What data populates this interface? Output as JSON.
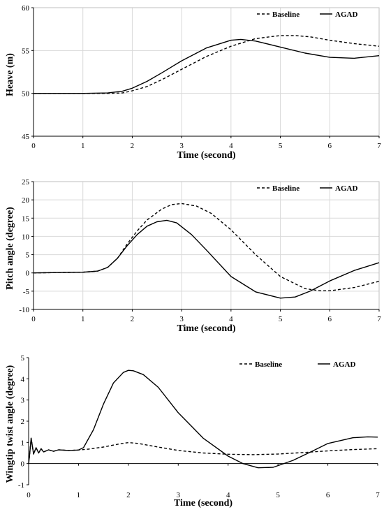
{
  "chart_data": [
    {
      "type": "line",
      "xlabel": "Time (second)",
      "ylabel": "Heave (m)",
      "xlim": [
        0,
        7
      ],
      "ylim": [
        45,
        60
      ],
      "xticks": [
        "0",
        "1",
        "2",
        "3",
        "4",
        "5",
        "6",
        "7"
      ],
      "yticks": [
        "45",
        "50",
        "55",
        "60"
      ],
      "ytick_values": [
        45,
        50,
        55,
        60
      ],
      "grid": true,
      "legend_position": "top-right",
      "series": [
        {
          "name": "Baseline",
          "style": "dashed",
          "x": [
            0,
            1,
            1.5,
            1.8,
            2,
            2.3,
            2.6,
            3,
            3.5,
            4,
            4.5,
            5,
            5.3,
            5.6,
            6,
            6.5,
            7
          ],
          "y": [
            50,
            50,
            50,
            50.05,
            50.3,
            50.8,
            51.6,
            52.8,
            54.3,
            55.5,
            56.4,
            56.75,
            56.75,
            56.6,
            56.2,
            55.8,
            55.5
          ]
        },
        {
          "name": "AGAD",
          "style": "solid",
          "x": [
            0,
            1,
            1.5,
            1.8,
            2,
            2.3,
            2.6,
            3,
            3.5,
            4,
            4.2,
            4.5,
            5,
            5.5,
            6,
            6.5,
            7
          ],
          "y": [
            50,
            50,
            50.05,
            50.25,
            50.6,
            51.4,
            52.4,
            53.8,
            55.3,
            56.2,
            56.3,
            56.1,
            55.4,
            54.7,
            54.2,
            54.1,
            54.4
          ]
        }
      ]
    },
    {
      "type": "line",
      "xlabel": "Time (second)",
      "ylabel": "Pitch angle (degree)",
      "xlim": [
        0,
        7
      ],
      "ylim": [
        -10,
        25
      ],
      "xticks": [
        "0",
        "1",
        "2",
        "3",
        "4",
        "5",
        "6",
        "7"
      ],
      "yticks": [
        "-10",
        "-5",
        "0",
        "5",
        "10",
        "15",
        "20",
        "25"
      ],
      "ytick_values": [
        -10,
        -5,
        0,
        5,
        10,
        15,
        20,
        25
      ],
      "grid": true,
      "legend_position": "top-right",
      "series": [
        {
          "name": "Baseline",
          "style": "dashed",
          "x": [
            0,
            1,
            1.3,
            1.5,
            1.7,
            1.9,
            2.1,
            2.3,
            2.6,
            2.8,
            3,
            3.3,
            3.6,
            4,
            4.5,
            5,
            5.5,
            5.8,
            6,
            6.5,
            7
          ],
          "y": [
            0,
            0.2,
            0.5,
            1.5,
            4,
            8,
            11.5,
            14.5,
            17.5,
            18.7,
            19,
            18.3,
            16.3,
            11.8,
            5,
            -1,
            -4.3,
            -4.9,
            -4.9,
            -4,
            -2.3
          ]
        },
        {
          "name": "AGAD",
          "style": "solid",
          "x": [
            0,
            1,
            1.3,
            1.5,
            1.7,
            1.9,
            2.1,
            2.3,
            2.5,
            2.7,
            2.9,
            3.2,
            3.5,
            4,
            4.5,
            5,
            5.3,
            5.6,
            6,
            6.5,
            7
          ],
          "y": [
            0,
            0.2,
            0.5,
            1.5,
            4,
            7.5,
            10.5,
            12.8,
            14,
            14.4,
            13.7,
            10.5,
            6.3,
            -1,
            -5.2,
            -6.9,
            -6.6,
            -5,
            -2.2,
            0.7,
            2.8
          ]
        }
      ]
    },
    {
      "type": "line",
      "xlabel": "Time (second)",
      "ylabel": "Wingtip twist angle (degree)",
      "xlim": [
        0,
        7
      ],
      "ylim": [
        -1,
        5
      ],
      "xticks": [
        "0",
        "1",
        "2",
        "3",
        "4",
        "5",
        "6",
        "7"
      ],
      "yticks": [
        "-1",
        "0",
        "1",
        "2",
        "3",
        "4",
        "5"
      ],
      "ytick_values": [
        -1,
        0,
        1,
        2,
        3,
        4,
        5
      ],
      "grid": false,
      "legend_position": "top-right",
      "series": [
        {
          "name": "Baseline",
          "style": "dashed",
          "x": [
            0,
            0.02,
            0.05,
            0.1,
            0.15,
            0.2,
            0.25,
            0.3,
            0.4,
            0.5,
            0.6,
            0.8,
            1,
            1.2,
            1.5,
            1.8,
            2,
            2.2,
            2.5,
            3,
            3.5,
            4,
            4.5,
            5,
            5.5,
            6,
            6.5,
            7
          ],
          "y": [
            0,
            0.4,
            1.2,
            0.45,
            0.75,
            0.5,
            0.7,
            0.55,
            0.65,
            0.58,
            0.65,
            0.62,
            0.64,
            0.68,
            0.78,
            0.92,
            0.99,
            0.95,
            0.82,
            0.62,
            0.5,
            0.44,
            0.42,
            0.45,
            0.52,
            0.6,
            0.66,
            0.7
          ]
        },
        {
          "name": "AGAD",
          "style": "solid",
          "x": [
            0,
            0.02,
            0.05,
            0.1,
            0.15,
            0.2,
            0.25,
            0.3,
            0.4,
            0.5,
            0.6,
            0.8,
            1,
            1.1,
            1.3,
            1.5,
            1.7,
            1.9,
            2,
            2.1,
            2.3,
            2.6,
            3,
            3.5,
            4,
            4.3,
            4.6,
            4.9,
            5.3,
            5.7,
            6,
            6.5,
            6.8,
            7
          ],
          "y": [
            0,
            0.4,
            1.2,
            0.45,
            0.75,
            0.5,
            0.7,
            0.55,
            0.65,
            0.58,
            0.65,
            0.62,
            0.64,
            0.75,
            1.6,
            2.8,
            3.8,
            4.3,
            4.4,
            4.38,
            4.2,
            3.6,
            2.4,
            1.2,
            0.35,
            0,
            -0.2,
            -0.18,
            0.15,
            0.6,
            0.95,
            1.22,
            1.26,
            1.25
          ]
        }
      ]
    }
  ]
}
